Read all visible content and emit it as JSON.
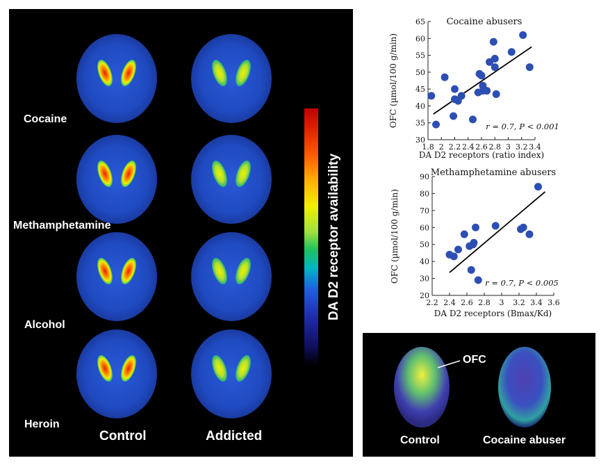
{
  "pet_panel": {
    "row_labels": [
      "Cocaine",
      "Methamphetamine",
      "Alcohol",
      "Heroin"
    ],
    "col_labels": [
      "Control",
      "Addicted"
    ],
    "colorbar_label": "DA D2 receptor availability"
  },
  "inset": {
    "labels": [
      "Control",
      "Cocaine abuser"
    ],
    "annotation": "OFC"
  },
  "chart_data": [
    {
      "type": "scatter",
      "title": "Cocaine abusers",
      "xlabel": "DA D2 receptors (ratio index)",
      "ylabel": "OFC (µmol/100 g/min)",
      "xlim": [
        1.8,
        3.4
      ],
      "ylim": [
        30,
        65
      ],
      "xticks": [
        "1.8",
        "2",
        "2.2",
        "2.4",
        "2.6",
        "2.8",
        "3",
        "3.2",
        "3.4"
      ],
      "yticks": [
        "30",
        "35",
        "40",
        "45",
        "50",
        "55",
        "60",
        "65"
      ],
      "annotation": "r = 0.7, P < 0.001",
      "color": "#2d4fb3",
      "points": [
        [
          1.85,
          43
        ],
        [
          1.92,
          34.5
        ],
        [
          2.05,
          48.5
        ],
        [
          2.18,
          37
        ],
        [
          2.2,
          42
        ],
        [
          2.2,
          45
        ],
        [
          2.25,
          41.5
        ],
        [
          2.3,
          43
        ],
        [
          2.47,
          36
        ],
        [
          2.55,
          44
        ],
        [
          2.57,
          49.5
        ],
        [
          2.6,
          49
        ],
        [
          2.62,
          46
        ],
        [
          2.62,
          44.5
        ],
        [
          2.68,
          44.5
        ],
        [
          2.72,
          53
        ],
        [
          2.78,
          59
        ],
        [
          2.8,
          51.5
        ],
        [
          2.8,
          54
        ],
        [
          2.82,
          43.5
        ],
        [
          3.05,
          56
        ],
        [
          3.22,
          61
        ],
        [
          3.32,
          51.5
        ]
      ],
      "fit": [
        [
          1.88,
          37.6
        ],
        [
          3.35,
          57.5
        ]
      ]
    },
    {
      "type": "scatter",
      "title": "Methamphetamine abusers",
      "xlabel": "DA D2 receptors (Bmax/Kd)",
      "ylabel": "OFC (µmol/100 g/min)",
      "xlim": [
        2.2,
        3.6
      ],
      "ylim": [
        20,
        90
      ],
      "xticks": [
        "2.2",
        "2.4",
        "2.6",
        "2.8",
        "3",
        "3.2",
        "3.4",
        "3.6"
      ],
      "yticks": [
        "20",
        "30",
        "40",
        "50",
        "60",
        "70",
        "80",
        "90"
      ],
      "annotation": "r = 0.7, P < 0.005",
      "color": "#2d4fb3",
      "points": [
        [
          2.4,
          44
        ],
        [
          2.45,
          43
        ],
        [
          2.5,
          47
        ],
        [
          2.57,
          56
        ],
        [
          2.63,
          49
        ],
        [
          2.65,
          35
        ],
        [
          2.67,
          50
        ],
        [
          2.68,
          51
        ],
        [
          2.7,
          60
        ],
        [
          2.73,
          29
        ],
        [
          2.93,
          61
        ],
        [
          3.22,
          59
        ],
        [
          3.25,
          60
        ],
        [
          3.32,
          56
        ],
        [
          3.42,
          84
        ]
      ],
      "fit": [
        [
          2.4,
          33.5
        ],
        [
          3.5,
          81
        ]
      ]
    }
  ]
}
